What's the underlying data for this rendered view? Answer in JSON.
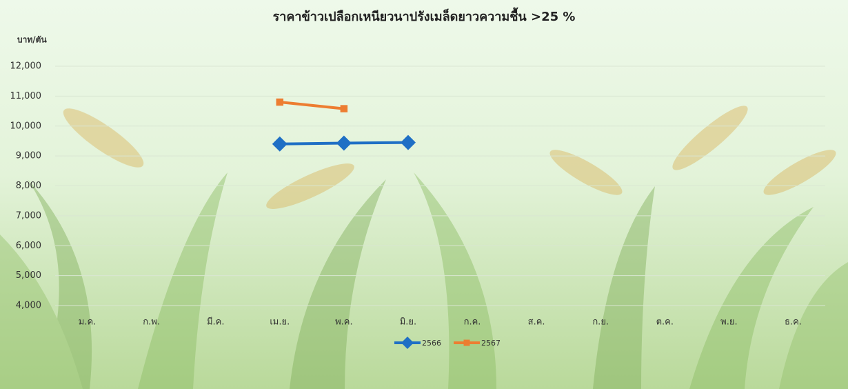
{
  "chart_data": {
    "type": "line",
    "title": "ราคาข้าวเปลือกเหนียวนาปรังเมล็ดยาวความชื้น >25 %",
    "y_label": "บาท/ตัน",
    "categories": [
      "ม.ค.",
      "ก.พ.",
      "มี.ค.",
      "เม.ย.",
      "พ.ค.",
      "มิ.ย.",
      "ก.ค.",
      "ส.ค.",
      "ก.ย.",
      "ต.ค.",
      "พ.ย.",
      "ธ.ค."
    ],
    "series": [
      {
        "name": "2566",
        "color": "#1f6fc5",
        "marker": "diamond",
        "values": [
          null,
          null,
          null,
          9400,
          9430,
          9450,
          null,
          null,
          null,
          null,
          null,
          null
        ]
      },
      {
        "name": "2567",
        "color": "#ed7d31",
        "marker": "square",
        "values": [
          null,
          null,
          null,
          10800,
          10580,
          null,
          null,
          null,
          null,
          null,
          null,
          null
        ]
      }
    ],
    "ylim": [
      4000,
      12000
    ],
    "yticks": [
      {
        "value": 4000,
        "label": "4,000"
      },
      {
        "value": 5000,
        "label": "5,000"
      },
      {
        "value": 6000,
        "label": "6,000"
      },
      {
        "value": 7000,
        "label": "7,000"
      },
      {
        "value": 8000,
        "label": "8,000"
      },
      {
        "value": 9000,
        "label": "9,000"
      },
      {
        "value": 10000,
        "label": "10,000"
      },
      {
        "value": 11000,
        "label": "11,000"
      },
      {
        "value": 12000,
        "label": "12,000"
      }
    ],
    "grid": true,
    "legend": "bottom"
  }
}
